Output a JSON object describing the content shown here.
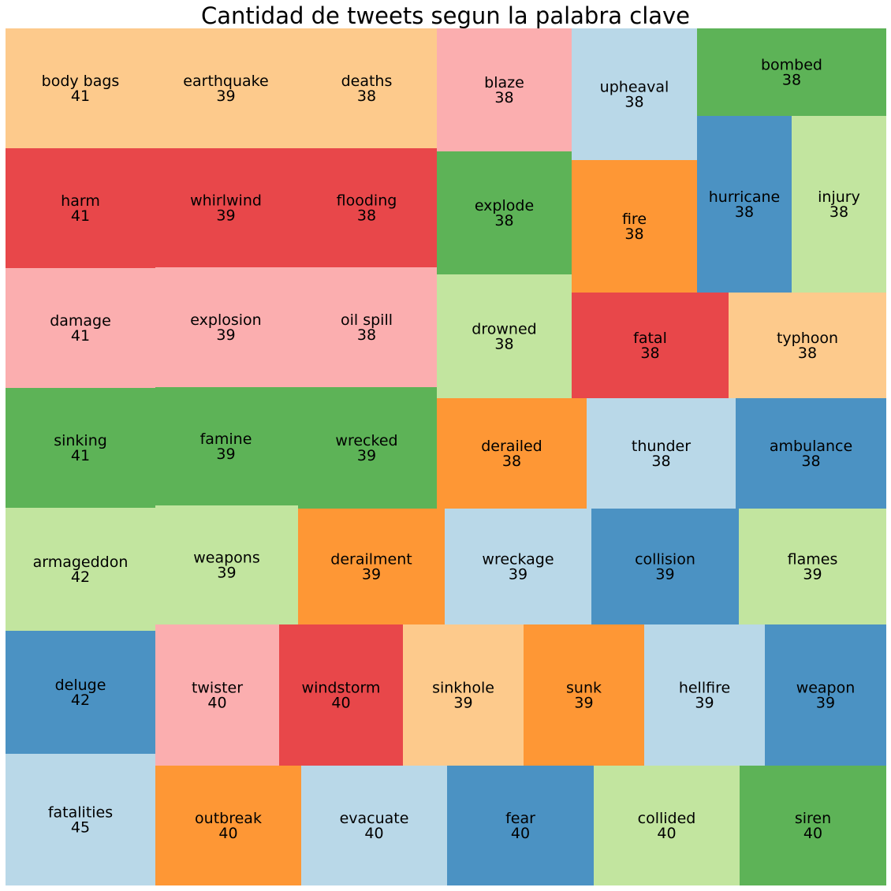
{
  "chart_data": {
    "type": "treemap",
    "title": "Cantidad de tweets segun la palabra clave",
    "items": [
      {
        "label": "body bags",
        "value": 41,
        "color": "#fdca8c"
      },
      {
        "label": "earthquake",
        "value": 39,
        "color": "#fdca8c"
      },
      {
        "label": "deaths",
        "value": 38,
        "color": "#fdca8c"
      },
      {
        "label": "blaze",
        "value": 38,
        "color": "#fbaeaf"
      },
      {
        "label": "upheaval",
        "value": 38,
        "color": "#b9d8e8"
      },
      {
        "label": "bombed",
        "value": 38,
        "color": "#5db357"
      },
      {
        "label": "harm",
        "value": 41,
        "color": "#e8474a"
      },
      {
        "label": "whirlwind",
        "value": 39,
        "color": "#e8474a"
      },
      {
        "label": "flooding",
        "value": 38,
        "color": "#e8474a"
      },
      {
        "label": "explode",
        "value": 38,
        "color": "#5db357"
      },
      {
        "label": "fire",
        "value": 38,
        "color": "#fe9735"
      },
      {
        "label": "hurricane",
        "value": 38,
        "color": "#4b92c3"
      },
      {
        "label": "injury",
        "value": 38,
        "color": "#c2e59f"
      },
      {
        "label": "damage",
        "value": 41,
        "color": "#fbaeaf"
      },
      {
        "label": "explosion",
        "value": 39,
        "color": "#fbaeaf"
      },
      {
        "label": "oil spill",
        "value": 38,
        "color": "#fbaeaf"
      },
      {
        "label": "drowned",
        "value": 38,
        "color": "#c2e59f"
      },
      {
        "label": "fatal",
        "value": 38,
        "color": "#e8474a"
      },
      {
        "label": "typhoon",
        "value": 38,
        "color": "#fdca8c"
      },
      {
        "label": "sinking",
        "value": 41,
        "color": "#5db357"
      },
      {
        "label": "famine",
        "value": 39,
        "color": "#5db357"
      },
      {
        "label": "wrecked",
        "value": 39,
        "color": "#5db357"
      },
      {
        "label": "derailed",
        "value": 38,
        "color": "#fe9735"
      },
      {
        "label": "thunder",
        "value": 38,
        "color": "#b9d8e8"
      },
      {
        "label": "ambulance",
        "value": 38,
        "color": "#4b92c3"
      },
      {
        "label": "armageddon",
        "value": 42,
        "color": "#c2e59f"
      },
      {
        "label": "weapons",
        "value": 39,
        "color": "#c2e59f"
      },
      {
        "label": "derailment",
        "value": 39,
        "color": "#fe9735"
      },
      {
        "label": "wreckage",
        "value": 39,
        "color": "#b9d8e8"
      },
      {
        "label": "collision",
        "value": 39,
        "color": "#4b92c3"
      },
      {
        "label": "flames",
        "value": 39,
        "color": "#c2e59f"
      },
      {
        "label": "deluge",
        "value": 42,
        "color": "#4b92c3"
      },
      {
        "label": "twister",
        "value": 40,
        "color": "#fbaeaf"
      },
      {
        "label": "windstorm",
        "value": 40,
        "color": "#e8474a"
      },
      {
        "label": "sinkhole",
        "value": 39,
        "color": "#fdca8c"
      },
      {
        "label": "sunk",
        "value": 39,
        "color": "#fe9735"
      },
      {
        "label": "hellfire",
        "value": 39,
        "color": "#b9d8e8"
      },
      {
        "label": "weapon",
        "value": 39,
        "color": "#4b92c3"
      },
      {
        "label": "fatalities",
        "value": 45,
        "color": "#b9d8e8"
      },
      {
        "label": "outbreak",
        "value": 40,
        "color": "#fe9735"
      },
      {
        "label": "evacuate",
        "value": 40,
        "color": "#b9d8e8"
      },
      {
        "label": "fear",
        "value": 40,
        "color": "#4b92c3"
      },
      {
        "label": "collided",
        "value": 40,
        "color": "#c2e59f"
      },
      {
        "label": "siren",
        "value": 40,
        "color": "#5db357"
      }
    ]
  }
}
